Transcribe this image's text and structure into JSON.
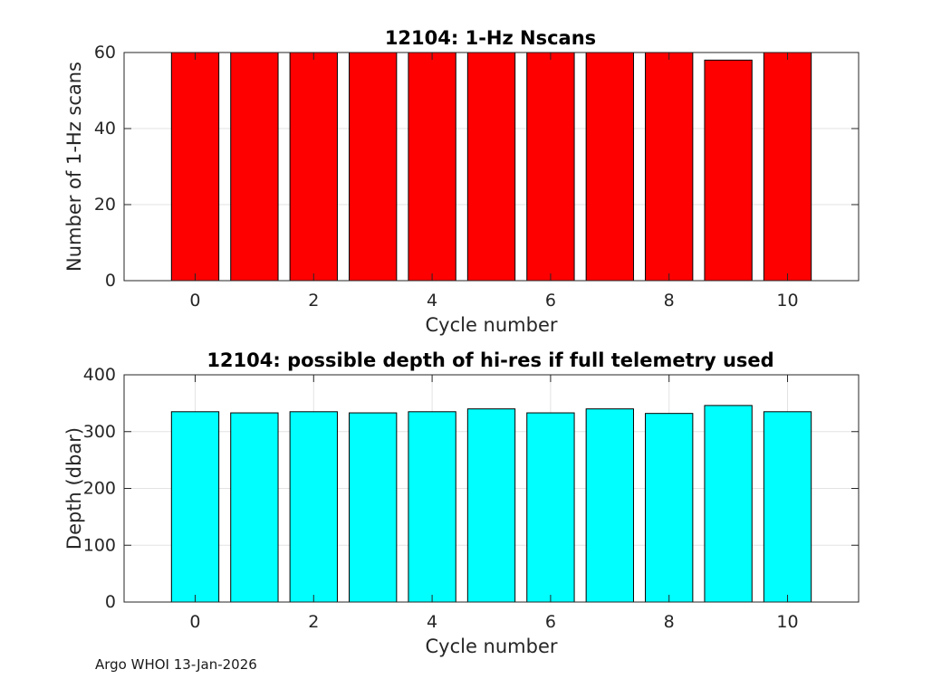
{
  "footer": "Argo WHOI 13-Jan-2026",
  "chart_data": [
    {
      "type": "bar",
      "title": "12104: 1-Hz Nscans",
      "xlabel": "Cycle number",
      "ylabel": "Number of 1-Hz scans",
      "x": [
        0,
        1,
        2,
        3,
        4,
        5,
        6,
        7,
        8,
        9,
        10
      ],
      "values": [
        60,
        60,
        60,
        60,
        60,
        60,
        60,
        60,
        60,
        58,
        60
      ],
      "xlim": [
        -1.2,
        11.2
      ],
      "ylim": [
        0,
        60
      ],
      "xticks": [
        0,
        2,
        4,
        6,
        8,
        10
      ],
      "yticks": [
        0,
        20,
        40,
        60
      ],
      "bar_color": "#ff0000",
      "grid": true
    },
    {
      "type": "bar",
      "title": "12104: possible depth of hi-res if full telemetry used",
      "xlabel": "Cycle number",
      "ylabel": "Depth (dbar)",
      "x": [
        0,
        1,
        2,
        3,
        4,
        5,
        6,
        7,
        8,
        9,
        10
      ],
      "values": [
        335,
        333,
        335,
        333,
        335,
        340,
        333,
        340,
        332,
        346,
        335
      ],
      "xlim": [
        -1.2,
        11.2
      ],
      "ylim": [
        0,
        400
      ],
      "xticks": [
        0,
        2,
        4,
        6,
        8,
        10
      ],
      "yticks": [
        0,
        100,
        200,
        300,
        400
      ],
      "bar_color": "#00ffff",
      "grid": true
    }
  ]
}
